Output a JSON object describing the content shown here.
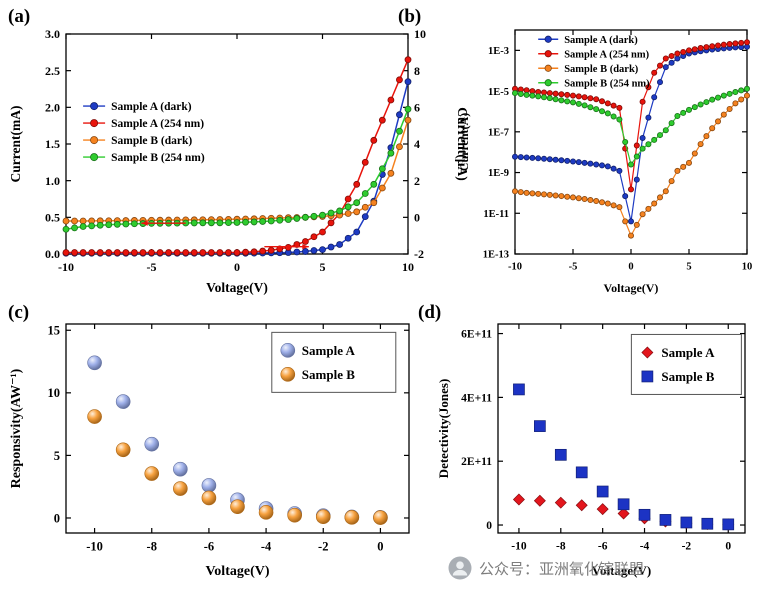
{
  "figure": {
    "background": "#ffffff"
  },
  "panels": {
    "a": {
      "label": "(a)"
    },
    "b": {
      "label": "(b)"
    },
    "c": {
      "label": "(c)"
    },
    "d": {
      "label": "(d)"
    }
  },
  "watermark": {
    "icon": "person-circle-icon",
    "text": "公众号：亚洲氧化镓联盟"
  },
  "chart_data": [
    {
      "id": "a",
      "type": "line",
      "xlabel": "Voltage(V)",
      "ylabel": "Current(mA)",
      "ylabel2": "Current(µA)",
      "xlim": [
        -10,
        10
      ],
      "ylim": [
        0,
        3.0
      ],
      "ylim2": [
        -2,
        10
      ],
      "xticks": [
        -10,
        -5,
        0,
        5,
        10
      ],
      "yticks": [
        0,
        0.5,
        1,
        1.5,
        2,
        2.5,
        3
      ],
      "ytick_labels": [
        "0.0",
        "0.5",
        "1.0",
        "1.5",
        "2.0",
        "2.5",
        "3.0"
      ],
      "y2ticks": [
        -2,
        0,
        2,
        4,
        6,
        8,
        10
      ],
      "y2tick_labels": [
        "-2",
        "0",
        "2",
        "4",
        "6",
        "8",
        "10"
      ],
      "x": [
        -10,
        -9,
        -8,
        -7,
        -6,
        -5,
        -4,
        -3,
        -2,
        -1,
        0,
        1,
        2,
        3,
        4,
        5,
        6,
        7,
        8,
        9,
        10
      ],
      "series": [
        {
          "name": "Sample A (dark)",
          "color": "#1e3bc3",
          "marker": "circle",
          "axis": "left",
          "y": [
            0.01,
            0.01,
            0.01,
            0.01,
            0.01,
            0.01,
            0.01,
            0.01,
            0.01,
            0.01,
            0.01,
            0.012,
            0.015,
            0.02,
            0.035,
            0.06,
            0.13,
            0.3,
            0.72,
            1.45,
            2.35
          ]
        },
        {
          "name": "Sample A (254 nm)",
          "color": "#e8140c",
          "marker": "circle",
          "axis": "left",
          "y": [
            0.02,
            0.02,
            0.02,
            0.02,
            0.02,
            0.02,
            0.02,
            0.02,
            0.02,
            0.02,
            0.02,
            0.03,
            0.05,
            0.09,
            0.17,
            0.3,
            0.55,
            0.95,
            1.55,
            2.1,
            2.65
          ]
        },
        {
          "name": "Sample B (dark)",
          "color": "#f5821f",
          "marker": "circle",
          "axis": "right",
          "y": [
            -0.2,
            -0.2,
            -0.19,
            -0.18,
            -0.17,
            -0.16,
            -0.15,
            -0.14,
            -0.13,
            -0.12,
            -0.1,
            -0.08,
            -0.05,
            -0.02,
            0,
            0.05,
            0.12,
            0.3,
            0.8,
            2.4,
            5.3
          ]
        },
        {
          "name": "Sample B (254 nm)",
          "color": "#2ecc2e",
          "marker": "circle",
          "axis": "right",
          "y": [
            -0.65,
            -0.5,
            -0.43,
            -0.38,
            -0.35,
            -0.33,
            -0.32,
            -0.31,
            -0.3,
            -0.3,
            -0.28,
            -0.25,
            -0.2,
            -0.12,
            0,
            0.12,
            0.35,
            0.8,
            1.8,
            3.5,
            5.9
          ]
        }
      ],
      "annotations": [
        {
          "x1": -3.0,
          "y1": 0.42,
          "x2": -5.6,
          "y2": 0.42,
          "axis": "left",
          "color": "#e8140c"
        },
        {
          "x1": 1.6,
          "y1": 0.1,
          "x2": 4.2,
          "y2": 0.1,
          "axis": "left",
          "color": "#e8140c"
        }
      ]
    },
    {
      "id": "b",
      "type": "line",
      "yscale": "log",
      "xlabel": "Voltage(V)",
      "ylabel": "Current(A)",
      "xlim": [
        -10,
        10
      ],
      "ylim": [
        1e-13,
        0.01
      ],
      "xticks": [
        -10,
        -5,
        0,
        5,
        10
      ],
      "yticks": [
        0.001,
        1e-05,
        1e-07,
        1e-09,
        1e-11,
        1e-13
      ],
      "ytick_labels": [
        "1E-3",
        "1E-5",
        "1E-7",
        "1E-9",
        "1E-11",
        "1E-13"
      ],
      "x": [
        -10,
        -9,
        -8,
        -7,
        -6,
        -5,
        -4,
        -3,
        -2,
        -1,
        0,
        1,
        2,
        3,
        4,
        5,
        6,
        7,
        8,
        9,
        10
      ],
      "series": [
        {
          "name": "Sample A (dark)",
          "color": "#1e3bc3",
          "marker": "circle",
          "y": [
            6e-09,
            5.5e-09,
            5e-09,
            4.5e-09,
            4e-09,
            3.5e-09,
            3e-09,
            2.5e-09,
            2e-09,
            1.2e-09,
            4e-12,
            5e-08,
            5e-06,
            0.00015,
            0.0004,
            0.0007,
            0.0009,
            0.0011,
            0.00125,
            0.0014,
            0.0015
          ]
        },
        {
          "name": "Sample A (254 nm)",
          "color": "#e8140c",
          "marker": "circle",
          "y": [
            1.3e-05,
            1.1e-05,
            9e-06,
            8e-06,
            7e-06,
            6e-06,
            5e-06,
            4e-06,
            2.5e-06,
            1.5e-06,
            1.5e-10,
            3e-06,
            8e-05,
            0.0004,
            0.0007,
            0.001,
            0.0013,
            0.0016,
            0.0019,
            0.0022,
            0.0025
          ]
        },
        {
          "name": "Sample B (dark)",
          "color": "#f5821f",
          "marker": "circle",
          "y": [
            1.2e-10,
            1e-10,
            9e-11,
            8e-11,
            7e-11,
            6e-11,
            5e-11,
            4e-11,
            3e-11,
            2e-11,
            8e-13,
            9e-12,
            3e-11,
            1.2e-10,
            1.2e-09,
            3e-09,
            2.5e-08,
            1.5e-07,
            7e-07,
            2.5e-06,
            6e-06
          ]
        },
        {
          "name": "Sample B (254 nm)",
          "color": "#2ecc2e",
          "marker": "circle",
          "y": [
            8e-06,
            6.5e-06,
            5.5e-06,
            4.5e-06,
            3.5e-06,
            2.8e-06,
            2e-06,
            1.3e-06,
            8e-07,
            4e-07,
            2.5e-09,
            1.5e-08,
            4e-08,
            1.2e-07,
            6e-07,
            1.2e-06,
            2.2e-06,
            3.8e-06,
            6e-06,
            9e-06,
            1.3e-05
          ]
        }
      ]
    },
    {
      "id": "c",
      "type": "scatter",
      "xlabel": "Voltage(V)",
      "ylabel": "Responsivity(AW⁻¹)",
      "xlim": [
        -11,
        1
      ],
      "ylim": [
        -1.2,
        15.5
      ],
      "xticks": [
        -10,
        -8,
        -6,
        -4,
        -2,
        0
      ],
      "yticks": [
        0,
        5,
        10,
        15
      ],
      "ytick_labels": [
        "0",
        "5",
        "10",
        "15"
      ],
      "x": [
        -10,
        -9,
        -8,
        -7,
        -6,
        -5,
        -4,
        -3,
        -2,
        -1,
        0
      ],
      "series": [
        {
          "name": "Sample A",
          "color": "#8fa3e6",
          "marker": "sphere",
          "y": [
            12.4,
            9.3,
            5.9,
            3.9,
            2.6,
            1.45,
            0.75,
            0.35,
            0.18,
            0.08,
            0.05
          ]
        },
        {
          "name": "Sample B",
          "color": "#f5921e",
          "marker": "sphere",
          "y": [
            8.1,
            5.45,
            3.55,
            2.35,
            1.6,
            0.9,
            0.45,
            0.22,
            0.1,
            0.05,
            0.03
          ]
        }
      ]
    },
    {
      "id": "d",
      "type": "scatter",
      "xlabel": "Voltage(V)",
      "ylabel": "Detectivity(Jones)",
      "xlim": [
        -11,
        0.8
      ],
      "ylim": [
        -25000000000.0,
        630000000000.0
      ],
      "xticks": [
        -10,
        -8,
        -6,
        -4,
        -2,
        0
      ],
      "yticks": [
        0,
        200000000000.0,
        400000000000.0,
        600000000000.0
      ],
      "ytick_labels": [
        "0",
        "2E+11",
        "4E+11",
        "6E+11"
      ],
      "x": [
        -10,
        -9,
        -8,
        -7,
        -6,
        -5,
        -4,
        -3,
        -2,
        -1,
        0
      ],
      "series": [
        {
          "name": "Sample A",
          "color": "#e3161d",
          "marker": "diamond",
          "y": [
            80000000000.0,
            76000000000.0,
            70000000000.0,
            62000000000.0,
            50000000000.0,
            36000000000.0,
            21000000000.0,
            11000000000.0,
            6000000000.0,
            3000000000.0,
            2000000000.0
          ]
        },
        {
          "name": "Sample B",
          "color": "#1c33c4",
          "marker": "square",
          "y": [
            425000000000.0,
            310000000000.0,
            220000000000.0,
            165000000000.0,
            105000000000.0,
            65000000000.0,
            32000000000.0,
            16000000000.0,
            8000000000.0,
            4000000000.0,
            2000000000.0
          ]
        }
      ]
    }
  ]
}
